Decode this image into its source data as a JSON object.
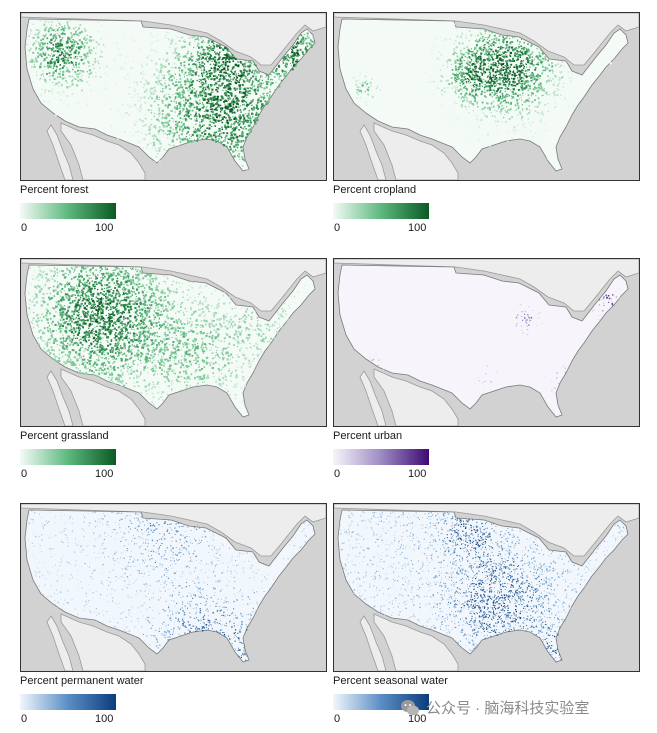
{
  "panels": [
    {
      "id": "forest",
      "label": "Percent forest",
      "min": "0",
      "max": "100",
      "colors": [
        "#f4fbf6",
        "#5cb97e",
        "#0a5a24"
      ],
      "density_pattern": "forest"
    },
    {
      "id": "cropland",
      "label": "Percent cropland",
      "min": "0",
      "max": "100",
      "colors": [
        "#f4fbf6",
        "#5cb97e",
        "#0a5a24"
      ],
      "density_pattern": "cropland"
    },
    {
      "id": "grassland",
      "label": "Percent grassland",
      "min": "0",
      "max": "100",
      "colors": [
        "#f4fbf6",
        "#5cb97e",
        "#0a5a24"
      ],
      "density_pattern": "grassland"
    },
    {
      "id": "urban",
      "label": "Percent urban",
      "min": "0",
      "max": "100",
      "colors": [
        "#f7f5fb",
        "#9d8cc4",
        "#3f0a72"
      ],
      "density_pattern": "urban"
    },
    {
      "id": "permanent_water",
      "label": "Percent permanent water",
      "min": "0",
      "max": "100",
      "colors": [
        "#f1f7fc",
        "#5b8ec4",
        "#0b3d7d"
      ],
      "density_pattern": "permwater"
    },
    {
      "id": "seasonal_water",
      "label": "Percent seasonal water",
      "min": "0",
      "max": "100",
      "colors": [
        "#f1f7fc",
        "#5b8ec4",
        "#0b3d7d"
      ],
      "density_pattern": "seasonalwater"
    }
  ],
  "watermark": {
    "text": "公众号 · 脑海科技实验室"
  }
}
